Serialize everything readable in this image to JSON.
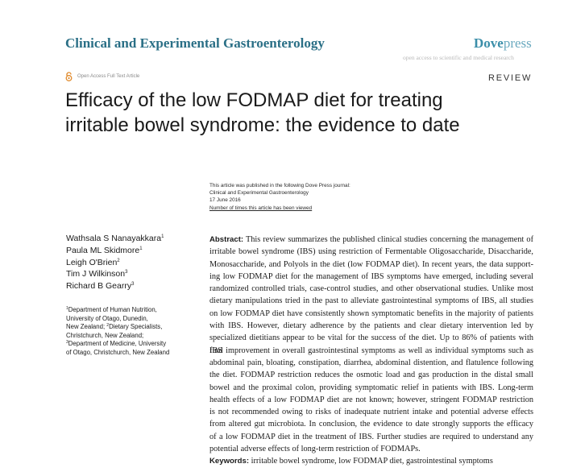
{
  "header": {
    "journal": "Clinical and Experimental Gastroenterology",
    "publisher_a": "Dove",
    "publisher_b": "press",
    "tagline": "open access to scientific and medical research"
  },
  "access": {
    "label": "Open Access Full Text Article",
    "icon": "open-access-icon"
  },
  "article_type": "REVIEW",
  "title_lines": [
    "Efficacy of the low FODMAP diet for treating",
    "irritable bowel syndrome: the evidence to date"
  ],
  "pub_info": {
    "line1": "This article was published in the following Dove Press journal:",
    "line2": "Clinical and Experimental Gastroenterology",
    "date": "17 June 2016",
    "views_link": "Number of times this article has been viewed"
  },
  "authors": [
    {
      "name": "Wathsala S Nanayakkara",
      "sup": "1"
    },
    {
      "name": "Paula ML Skidmore",
      "sup": "1"
    },
    {
      "name": "Leigh O'Brien",
      "sup": "2"
    },
    {
      "name": "Tim J Wilkinson",
      "sup": "3"
    },
    {
      "name": "Richard B Gearry",
      "sup": "3"
    }
  ],
  "affiliations": {
    "l1_sup": "1",
    "l1": "Department of Human Nutrition,",
    "l2": "University of Otago, Dunedin,",
    "l3a": "New Zealand; ",
    "l3_sup": "2",
    "l3b": "Dietary Specialists,",
    "l4": "Christchurch, New Zealand;",
    "l5_sup": "3",
    "l5": "Department of Medicine, University",
    "l6": "of Otago, Christchurch, New Zealand"
  },
  "abstract": {
    "label": "Abstract:",
    "lines": [
      " This review summarizes the published clinical studies concerning the management of",
      "irritable bowel syndrome (IBS) using restriction of Fermentable Oligosaccharide, Disaccharide,",
      "Monosaccharide, and Polyols in the diet (low FODMAP diet). In recent years, the data support-",
      "ing low FODMAP diet for the management of IBS symptoms have emerged, including several",
      "randomized controlled trials, case-control studies, and other observational studies. Unlike most",
      "dietary manipulations tried in the past to alleviate gastrointestinal symptoms of IBS, all studies",
      "on low FODMAP diet have consistently shown symptomatic benefits in the majority of patients",
      "with IBS. However, dietary adherence by the patients and clear dietary intervention led by",
      "specialized dietitians appear to be vital for the success of the diet. Up to 86% of patients with IBS",
      "find improvement in overall gastrointestinal symptoms as well as individual symptoms such as",
      "abdominal pain, bloating, constipation, diarrhea, abdominal distention, and flatulence following",
      "the diet. FODMAP restriction reduces the osmotic load and gas production in the distal small",
      "bowel and the proximal colon, providing symptomatic relief in patients with IBS. Long-term",
      "health effects of a low FODMAP diet are not known; however, stringent FODMAP restriction",
      "is not recommended owing to risks of inadequate nutrient intake and potential adverse effects",
      "from altered gut microbiota. In conclusion, the evidence to date strongly supports the efficacy",
      "of a low FODMAP diet in the treatment of IBS. Further studies are required to understand any",
      "potential adverse effects of long-term restriction of FODMAPs."
    ]
  },
  "keywords": {
    "label": "Keywords:",
    "text": " irritable bowel syndrome, low FODMAP diet, gastrointestinal symptoms"
  }
}
